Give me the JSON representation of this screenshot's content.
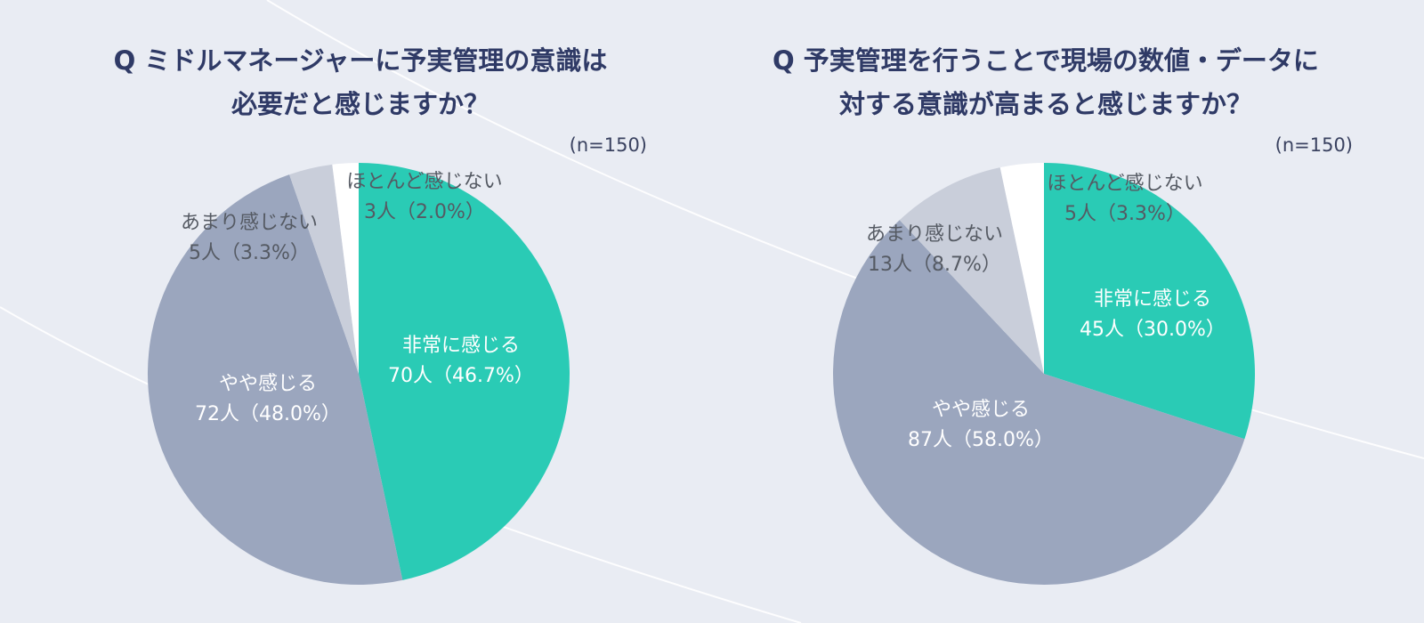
{
  "chart_data": [
    {
      "type": "pie",
      "title_lines": [
        "Q ミドルマネージャーに予実管理の意識は",
        "必要だと感じますか？"
      ],
      "n_label": "(n=150)",
      "slices": [
        {
          "name": "非常に感じる",
          "value_label": "70人（46.7%）",
          "count": 70,
          "percent": 46.7,
          "color": "#2acbb5",
          "label_color": "#ffffff"
        },
        {
          "name": "やや感じる",
          "value_label": "72人（48.0%）",
          "count": 72,
          "percent": 48.0,
          "color": "#9ba6be",
          "label_color": "#ffffff"
        },
        {
          "name": "あまり感じない",
          "value_label": "5人（3.3%）",
          "count": 5,
          "percent": 3.3,
          "color": "#c9ceda",
          "label_color": "#555a63"
        },
        {
          "name": "ほとんど感じない",
          "value_label": "3人（2.0%）",
          "count": 3,
          "percent": 2.0,
          "color": "#ffffff",
          "label_color": "#555a63"
        }
      ]
    },
    {
      "type": "pie",
      "title_lines": [
        "Q 予実管理を行うことで現場の数値・データに",
        "対する意識が高まると感じますか？"
      ],
      "n_label": "(n=150)",
      "slices": [
        {
          "name": "非常に感じる",
          "value_label": "45人（30.0%）",
          "count": 45,
          "percent": 30.0,
          "color": "#2acbb5",
          "label_color": "#ffffff"
        },
        {
          "name": "やや感じる",
          "value_label": "87人（58.0%）",
          "count": 87,
          "percent": 58.0,
          "color": "#9ba6be",
          "label_color": "#ffffff"
        },
        {
          "name": "あまり感じない",
          "value_label": "13人（8.7%）",
          "count": 13,
          "percent": 8.7,
          "color": "#c9ceda",
          "label_color": "#555a63"
        },
        {
          "name": "ほとんど感じない",
          "value_label": "5人（3.3%）",
          "count": 5,
          "percent": 3.3,
          "color": "#ffffff",
          "label_color": "#555a63"
        }
      ]
    }
  ]
}
